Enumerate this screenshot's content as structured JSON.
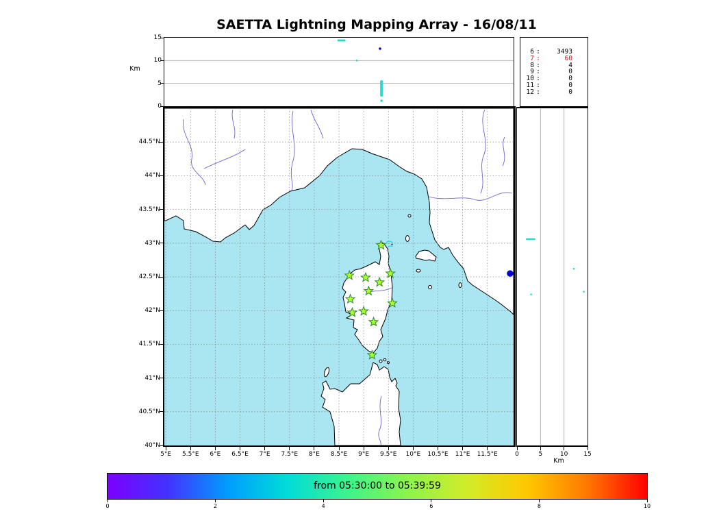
{
  "title": "SAETTA Lightning Mapping Array - 16/08/11",
  "colors": {
    "sea": "#a9e6f2",
    "land": "#ffffff",
    "coast": "#000000",
    "river": "#6f62d0",
    "grid": "#8c8c8c",
    "star_fill": "#adff2f",
    "star_edge": "#2d8a2d",
    "cyan_event": "#2fd8cc",
    "blue_event": "#0000cc",
    "highlight_red": "#dd1111"
  },
  "top_panel": {
    "ylabel": "Km",
    "yticks": [
      "0",
      "5",
      "10",
      "15"
    ],
    "ymax_km": 15
  },
  "station_counts": [
    {
      "station": "6",
      "count": "3493",
      "color": "#000000"
    },
    {
      "station": "7",
      "count": "60",
      "color": "#dd1111"
    },
    {
      "station": "8",
      "count": "4",
      "color": "#000000"
    },
    {
      "station": "9",
      "count": "0",
      "color": "#000000"
    },
    {
      "station": "10",
      "count": "0",
      "color": "#000000"
    },
    {
      "station": "11",
      "count": "0",
      "color": "#000000"
    },
    {
      "station": "12",
      "count": "0",
      "color": "#000000"
    }
  ],
  "map": {
    "lon_labels": [
      "5°E",
      "5.5°E",
      "6°E",
      "6.5°E",
      "7°E",
      "7.5°E",
      "8°E",
      "8.5°E",
      "9°E",
      "9.5°E",
      "10°E",
      "10.5°E",
      "11°E",
      "11.5°E"
    ],
    "lat_labels": [
      "40°N",
      "40.5°N",
      "41°N",
      "41.5°N",
      "42°N",
      "42.5°N",
      "43°N",
      "43.5°N",
      "44°N",
      "44.5°N"
    ]
  },
  "right_panel": {
    "xlabel": "Km",
    "xticks": [
      "0",
      "5",
      "10",
      "15"
    ],
    "xmax_km": 15
  },
  "colorbar": {
    "label": "from 05:30:00 to 05:39:59",
    "ticks": [
      "0",
      "2",
      "4",
      "6",
      "8",
      "10"
    ],
    "gradient": [
      "#7c00ff",
      "#4332ff",
      "#009cff",
      "#00dcd8",
      "#3cf48c",
      "#8cf44c",
      "#d2ec28",
      "#ffc800",
      "#ff7800",
      "#ff0000"
    ]
  },
  "chart_data": [
    {
      "type": "scatter",
      "panel": "altitude_vs_longitude",
      "ylabel": "Km",
      "ylim_km": [
        0,
        15
      ],
      "xlim_deg_e": [
        5,
        12
      ],
      "points": [
        {
          "lon": 8.55,
          "alt_km": 14.4,
          "t_min": 3.5,
          "shape": "dash"
        },
        {
          "lon": 8.86,
          "alt_km": 10.0,
          "t_min": 3.5,
          "shape": "speck"
        },
        {
          "lon": 9.33,
          "alt_km": 12.6,
          "t_min": 1.0,
          "shape": "dot"
        },
        {
          "lon": 9.36,
          "alt_top_km": 5.7,
          "alt_bot_km": 2.1,
          "t_min": 3.5,
          "shape": "column"
        },
        {
          "lon": 9.36,
          "alt_km": 1.2,
          "t_min": 3.5,
          "shape": "dot"
        }
      ]
    },
    {
      "type": "map_scatter",
      "panel": "plan_view",
      "lon_range_deg_e": [
        5,
        12
      ],
      "lat_range_deg_n": [
        40,
        45
      ],
      "grid_step_deg": 0.5,
      "lma_stations_lon_lat": [
        [
          9.35,
          42.97
        ],
        [
          8.71,
          42.52
        ],
        [
          9.04,
          42.49
        ],
        [
          9.32,
          42.42
        ],
        [
          9.54,
          42.55
        ],
        [
          9.1,
          42.29
        ],
        [
          8.73,
          42.17
        ],
        [
          9.58,
          42.11
        ],
        [
          8.77,
          41.97
        ],
        [
          9.0,
          41.99
        ],
        [
          9.2,
          41.83
        ],
        [
          9.17,
          41.34
        ]
      ],
      "events": [
        {
          "lon": 9.42,
          "lat": 43.03,
          "t_min": 3.5,
          "style": "small-cyan-cluster"
        },
        {
          "lon": 11.96,
          "lat": 42.55,
          "t_min": 1.0,
          "style": "large-blue-dot"
        }
      ]
    },
    {
      "type": "scatter",
      "panel": "altitude_vs_latitude",
      "xlabel": "Km",
      "xlim_km": [
        0,
        15
      ],
      "points": [
        {
          "alt_km": 2.9,
          "lat": 43.06,
          "t_min": 3.5,
          "shape": "dash"
        },
        {
          "alt_km": 3.0,
          "lat": 42.24,
          "t_min": 3.5,
          "shape": "speck"
        },
        {
          "alt_km": 12.1,
          "lat": 42.62,
          "t_min": 3.5,
          "shape": "speck"
        },
        {
          "alt_km": 14.2,
          "lat": 42.28,
          "t_min": 3.5,
          "shape": "speck"
        }
      ]
    },
    {
      "type": "colorbar",
      "label": "from 05:30:00 to 05:39:59",
      "value_range_min": [
        0,
        10
      ],
      "colormap": "rainbow"
    }
  ]
}
